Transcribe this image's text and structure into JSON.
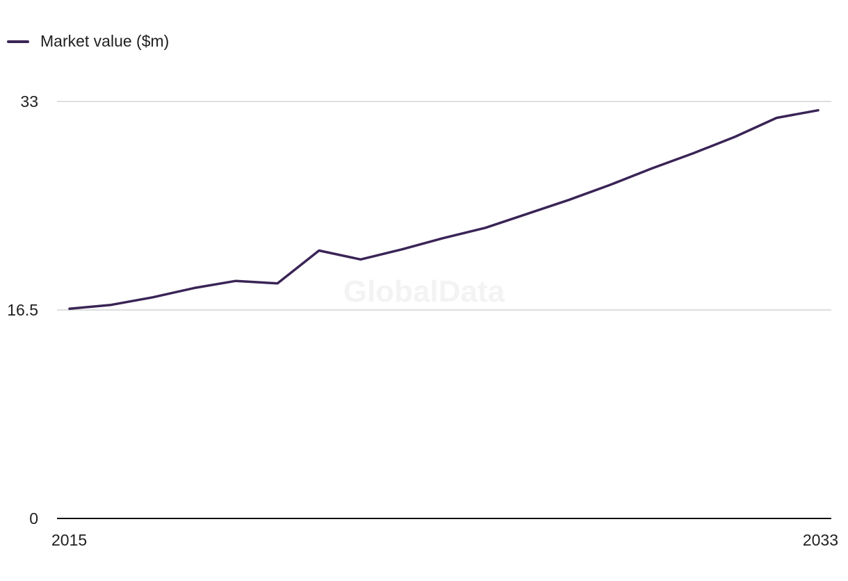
{
  "watermark": "GlobalData",
  "legend": {
    "label": "Market value ($m)"
  },
  "colors": {
    "line": "#3a2456",
    "grid": "#d4d4d4",
    "axis": "#111111"
  },
  "chart_data": {
    "type": "line",
    "x": [
      2015,
      2016,
      2017,
      2018,
      2019,
      2020,
      2021,
      2022,
      2023,
      2024,
      2025,
      2026,
      2027,
      2028,
      2029,
      2030,
      2031,
      2032,
      2033
    ],
    "series": [
      {
        "name": "Market value ($m)",
        "values": [
          16.6,
          16.9,
          17.5,
          18.24,
          18.8,
          18.6,
          21.2,
          20.5,
          21.3,
          22.2,
          23.0,
          24.1,
          25.2,
          26.4,
          27.7,
          28.9,
          30.2,
          31.7,
          32.3
        ]
      }
    ],
    "yticks": [
      0,
      16.5,
      33
    ],
    "xticks": [
      2015,
      2033
    ],
    "ylim": [
      0,
      33
    ],
    "xlim": [
      2015,
      2033
    ],
    "grid": true,
    "legend_position": "top-left"
  }
}
